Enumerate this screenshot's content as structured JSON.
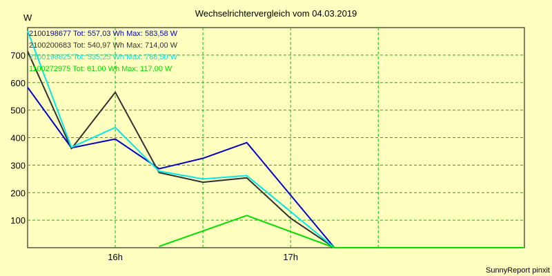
{
  "chart_data": {
    "type": "line",
    "title": "Wechselrichtervergleich vom 04.03.2019",
    "ylabel": "W",
    "footer": "SunnyReport pinxit",
    "ylim": [
      0,
      800
    ],
    "yticks": [
      100,
      200,
      300,
      400,
      500,
      600,
      700
    ],
    "xlim": [
      "15:30",
      "18:20"
    ],
    "xticks": [
      {
        "x": "16:00",
        "label": "16h"
      },
      {
        "x": "17:00",
        "label": "17h"
      }
    ],
    "xgrid": [
      "16:00",
      "16:30",
      "17:00",
      "17:30"
    ],
    "grid": true,
    "legend_position": "top-left",
    "series": [
      {
        "name": "2100198677 Tot: 557,03 Wh Max: 583,58 W",
        "color": "#0000c8",
        "x": [
          "15:30",
          "15:45",
          "16:00",
          "16:15",
          "16:30",
          "16:45",
          "17:15",
          "18:20"
        ],
        "y": [
          583,
          363,
          395,
          287,
          325,
          382,
          0,
          0
        ]
      },
      {
        "name": "2100200683 Tot: 540,97 Wh Max: 714,00 W",
        "color": "#303030",
        "x": [
          "15:30",
          "15:45",
          "16:00",
          "16:15",
          "16:30",
          "16:45",
          "17:00",
          "17:15",
          "18:20"
        ],
        "y": [
          714,
          360,
          565,
          273,
          238,
          254,
          107,
          0,
          0
        ]
      },
      {
        "name": "2100198825 Tot: 535,25 Wh Max: 788,50 W",
        "color": "#00e8e8",
        "x": [
          "15:30",
          "15:45",
          "16:00",
          "16:15",
          "16:30",
          "16:45",
          "17:15",
          "18:20"
        ],
        "y": [
          788,
          365,
          437,
          278,
          250,
          262,
          0,
          0
        ]
      },
      {
        "name": "1100272975 Tot: 61,00 Wh Max: 117,00 W",
        "color": "#00e000",
        "x": [
          "16:15",
          "16:45",
          "17:15",
          "18:20"
        ],
        "y": [
          5,
          117,
          0,
          0
        ]
      }
    ]
  }
}
